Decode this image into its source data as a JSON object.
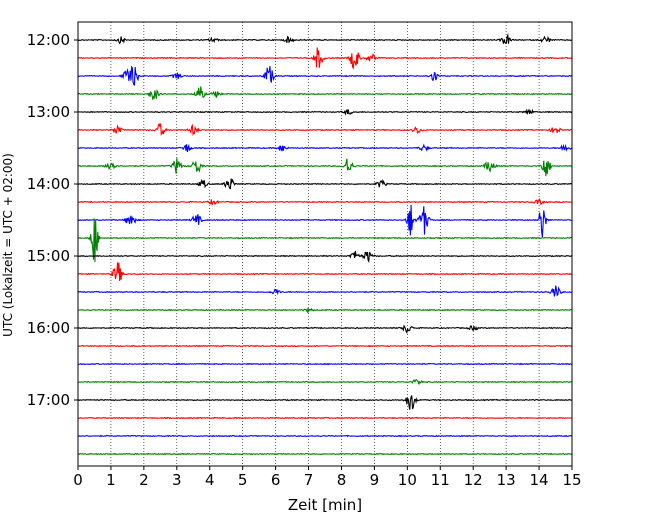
{
  "chart_data": {
    "type": "line",
    "title": "",
    "xlabel": "Zeit  [min]",
    "ylabel": "UTC (Lokalzeit = UTC + 02:00)",
    "xlim": [
      0,
      15
    ],
    "x_ticks": [
      0,
      1,
      2,
      3,
      4,
      5,
      6,
      7,
      8,
      9,
      10,
      11,
      12,
      13,
      14,
      15
    ],
    "y_ticks": [
      "12:00",
      "13:00",
      "14:00",
      "15:00",
      "16:00",
      "17:00"
    ],
    "y_tick_traces": [
      0,
      4,
      8,
      12,
      16,
      20
    ],
    "grid": "x-dotted",
    "trace_minutes": 15,
    "trace_colors": [
      "#000000",
      "#ff0000",
      "#0000ff",
      "#008000"
    ],
    "series": [
      {
        "start": "12:00",
        "color": "#000000",
        "events": [
          [
            1.3,
            0.25
          ],
          [
            4.1,
            0.2
          ],
          [
            6.4,
            0.25
          ],
          [
            13.0,
            0.45
          ],
          [
            14.2,
            0.3
          ]
        ]
      },
      {
        "start": "12:15",
        "color": "#ff0000",
        "events": [
          [
            7.3,
            0.9
          ],
          [
            8.4,
            1.0
          ],
          [
            8.9,
            0.35
          ]
        ]
      },
      {
        "start": "12:30",
        "color": "#0000ff",
        "events": [
          [
            1.5,
            0.55
          ],
          [
            1.7,
            0.75
          ],
          [
            3.0,
            0.25
          ],
          [
            5.8,
            0.85
          ],
          [
            10.8,
            0.45
          ]
        ]
      },
      {
        "start": "12:45",
        "color": "#008000",
        "events": [
          [
            2.3,
            0.55
          ],
          [
            3.7,
            0.6
          ],
          [
            4.2,
            0.3
          ]
        ]
      },
      {
        "start": "13:00",
        "color": "#000000",
        "events": [
          [
            8.2,
            0.2
          ],
          [
            13.7,
            0.2
          ]
        ]
      },
      {
        "start": "13:15",
        "color": "#ff0000",
        "events": [
          [
            1.2,
            0.4
          ],
          [
            2.5,
            0.55
          ],
          [
            3.5,
            0.4
          ],
          [
            10.3,
            0.3
          ],
          [
            14.5,
            0.35
          ]
        ]
      },
      {
        "start": "13:30",
        "color": "#0000ff",
        "events": [
          [
            3.3,
            0.35
          ],
          [
            6.2,
            0.3
          ],
          [
            10.5,
            0.25
          ],
          [
            14.8,
            0.35
          ]
        ]
      },
      {
        "start": "13:45",
        "color": "#008000",
        "events": [
          [
            1.0,
            0.55
          ],
          [
            3.0,
            0.65
          ],
          [
            3.6,
            0.65
          ],
          [
            8.2,
            0.7
          ],
          [
            12.5,
            0.55
          ],
          [
            14.2,
            0.9
          ]
        ]
      },
      {
        "start": "14:00",
        "color": "#000000",
        "events": [
          [
            3.8,
            0.3
          ],
          [
            4.6,
            0.55
          ],
          [
            9.2,
            0.3
          ]
        ]
      },
      {
        "start": "14:15",
        "color": "#ff0000",
        "events": [
          [
            4.1,
            0.2
          ],
          [
            14.0,
            0.2
          ]
        ]
      },
      {
        "start": "14:30",
        "color": "#0000ff",
        "events": [
          [
            1.6,
            0.6
          ],
          [
            3.6,
            0.5
          ],
          [
            10.1,
            1.4
          ],
          [
            10.5,
            1.2
          ],
          [
            14.1,
            1.5
          ]
        ]
      },
      {
        "start": "14:45",
        "color": "#008000",
        "events": [
          [
            0.5,
            2.2
          ]
        ]
      },
      {
        "start": "15:00",
        "color": "#000000",
        "events": [
          [
            8.4,
            0.4
          ],
          [
            8.8,
            0.45
          ]
        ]
      },
      {
        "start": "15:15",
        "color": "#ff0000",
        "events": [
          [
            1.2,
            1.0
          ]
        ]
      },
      {
        "start": "15:30",
        "color": "#0000ff",
        "events": [
          [
            6.0,
            0.25
          ],
          [
            14.5,
            0.55
          ]
        ]
      },
      {
        "start": "15:45",
        "color": "#008000",
        "events": [
          [
            7.0,
            0.15
          ]
        ]
      },
      {
        "start": "16:00",
        "color": "#000000",
        "events": [
          [
            10.0,
            0.4
          ],
          [
            12.0,
            0.2
          ]
        ]
      },
      {
        "start": "16:15",
        "color": "#ff0000",
        "events": []
      },
      {
        "start": "16:30",
        "color": "#0000ff",
        "events": []
      },
      {
        "start": "16:45",
        "color": "#008000",
        "events": [
          [
            10.3,
            0.25
          ]
        ]
      },
      {
        "start": "17:00",
        "color": "#000000",
        "events": [
          [
            10.1,
            0.9
          ]
        ]
      },
      {
        "start": "17:15",
        "color": "#ff0000",
        "events": []
      },
      {
        "start": "17:30",
        "color": "#0000ff",
        "events": []
      },
      {
        "start": "17:45",
        "color": "#008000",
        "events": []
      }
    ]
  }
}
